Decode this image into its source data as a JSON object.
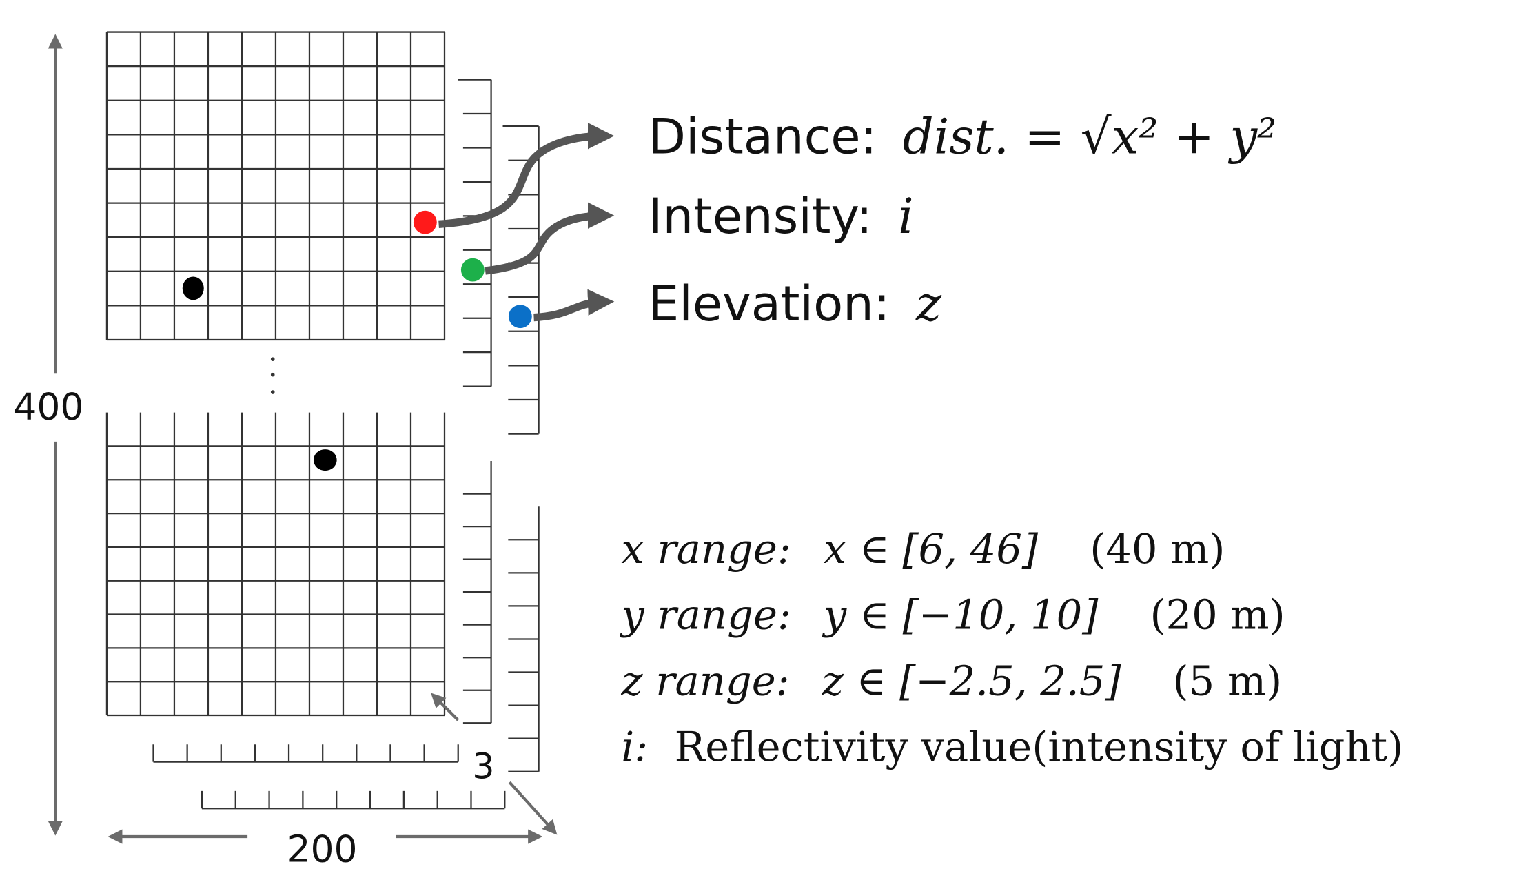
{
  "labels": {
    "height": "400",
    "width": "200",
    "channels": "3"
  },
  "features": [
    {
      "name": "Distance:",
      "formula": "dist. = √x² + y²"
    },
    {
      "name": "Intensity:",
      "formula": "i"
    },
    {
      "name": "Elevation:",
      "formula": "z"
    }
  ],
  "ranges": [
    {
      "label": "x range:",
      "expr": "x ∈ [6, 46]",
      "extent": "(40 m)"
    },
    {
      "label": "y range:",
      "expr": "y ∈ [−10, 10]",
      "extent": "(20 m)"
    },
    {
      "label": "z range:",
      "expr": "z ∈ [−2.5, 2.5]",
      "extent": "(5 m)"
    },
    {
      "label": "i:",
      "expr": "Reflectivity value(intensity of light)"
    }
  ]
}
